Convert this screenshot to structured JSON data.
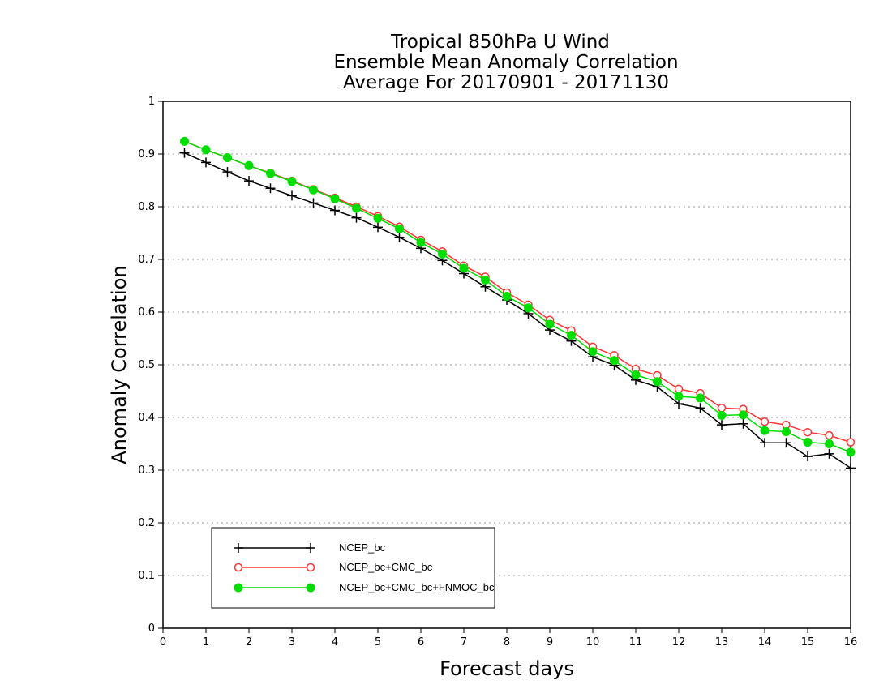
{
  "chart_data": {
    "type": "line",
    "title_lines": [
      "Tropical 850hPa U Wind",
      "Ensemble Mean Anomaly Correlation",
      "Average For 20170901 - 20171130"
    ],
    "xlabel": "Forecast days",
    "ylabel": "Anomaly Correlation",
    "xlim": [
      0,
      16
    ],
    "ylim": [
      0,
      1
    ],
    "x_ticks": [
      "0",
      "1",
      "2",
      "3",
      "4",
      "5",
      "6",
      "7",
      "8",
      "9",
      "10",
      "11",
      "12",
      "13",
      "14",
      "15",
      "16"
    ],
    "y_ticks": [
      "0",
      "0.1",
      "0.2",
      "0.3",
      "0.4",
      "0.5",
      "0.6",
      "0.7",
      "0.8",
      "0.9",
      "1"
    ],
    "grid": true,
    "legend_position": "bottom-left",
    "x": [
      0.5,
      1,
      1.5,
      2,
      2.5,
      3,
      3.5,
      4,
      4.5,
      5,
      5.5,
      6,
      6.5,
      7,
      7.5,
      8,
      8.5,
      9,
      9.5,
      10,
      10.5,
      11,
      11.5,
      12,
      12.5,
      13,
      13.5,
      14,
      14.5,
      15,
      15.5,
      16
    ],
    "series": [
      {
        "name": "NCEP_bc",
        "color": "#000000",
        "marker": "plus",
        "values": [
          0.902,
          0.884,
          0.866,
          0.849,
          0.835,
          0.821,
          0.807,
          0.793,
          0.779,
          0.761,
          0.742,
          0.721,
          0.698,
          0.673,
          0.648,
          0.623,
          0.597,
          0.566,
          0.545,
          0.515,
          0.499,
          0.471,
          0.458,
          0.426,
          0.418,
          0.386,
          0.388,
          0.352,
          0.352,
          0.326,
          0.331,
          0.304
        ]
      },
      {
        "name": "NCEP_bc+CMC_bc",
        "color": "#ff3333",
        "marker": "open-circle",
        "values": [
          0.924,
          0.908,
          0.893,
          0.878,
          0.864,
          0.849,
          0.833,
          0.817,
          0.8,
          0.782,
          0.762,
          0.737,
          0.715,
          0.688,
          0.667,
          0.637,
          0.614,
          0.585,
          0.565,
          0.534,
          0.518,
          0.492,
          0.48,
          0.454,
          0.446,
          0.418,
          0.416,
          0.392,
          0.386,
          0.372,
          0.366,
          0.353
        ]
      },
      {
        "name": "NCEP_bc+CMC_bc+FNMOC_bc",
        "color": "#00dd00",
        "marker": "filled-circle",
        "values": [
          0.924,
          0.908,
          0.893,
          0.878,
          0.863,
          0.848,
          0.832,
          0.815,
          0.797,
          0.778,
          0.758,
          0.732,
          0.71,
          0.683,
          0.661,
          0.63,
          0.608,
          0.577,
          0.556,
          0.525,
          0.508,
          0.481,
          0.468,
          0.44,
          0.437,
          0.404,
          0.405,
          0.375,
          0.373,
          0.353,
          0.35,
          0.334
        ]
      }
    ]
  }
}
